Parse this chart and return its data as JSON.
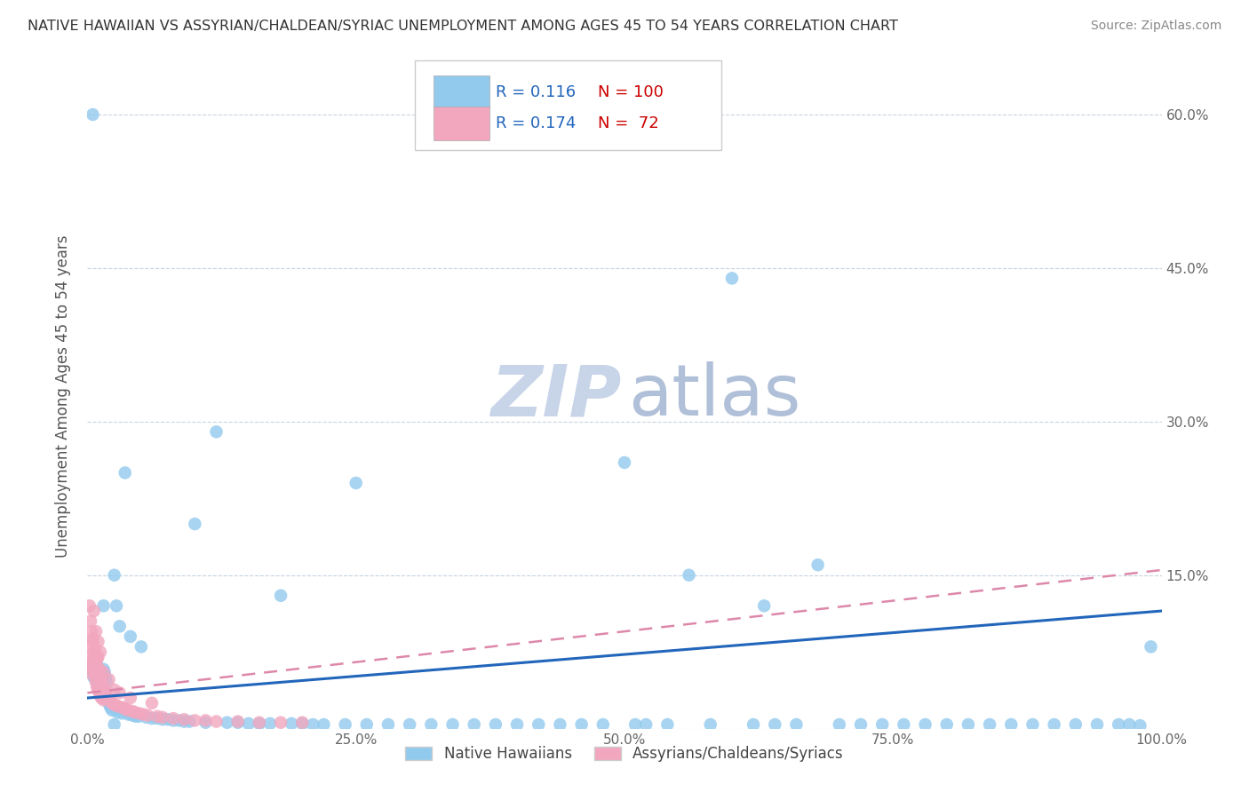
{
  "title": "NATIVE HAWAIIAN VS ASSYRIAN/CHALDEAN/SYRIAC UNEMPLOYMENT AMONG AGES 45 TO 54 YEARS CORRELATION CHART",
  "source": "Source: ZipAtlas.com",
  "ylabel": "Unemployment Among Ages 45 to 54 years",
  "xlim": [
    0.0,
    1.0
  ],
  "ylim": [
    0.0,
    0.65
  ],
  "x_ticks": [
    0.0,
    0.25,
    0.5,
    0.75,
    1.0
  ],
  "x_tick_labels": [
    "0.0%",
    "25.0%",
    "50.0%",
    "75.0%",
    "100.0%"
  ],
  "y_ticks": [
    0.0,
    0.15,
    0.3,
    0.45,
    0.6
  ],
  "y_tick_labels": [
    "",
    "15.0%",
    "30.0%",
    "45.0%",
    "60.0%"
  ],
  "r_blue": 0.116,
  "n_blue": 100,
  "r_pink": 0.174,
  "n_pink": 72,
  "blue_color": "#92caee",
  "pink_color": "#f2a7bf",
  "trend_blue_color": "#2266bb",
  "trend_pink_color": "#dd88aa",
  "watermark_zip_color": "#c8d4e8",
  "watermark_atlas_color": "#b0c0d8",
  "legend_text_color": "#2266bb",
  "legend_n_color": "#cc0000",
  "background_color": "#ffffff",
  "grid_color": "#c8d4e0",
  "title_color": "#333333",
  "source_color": "#888888",
  "ylabel_color": "#555555",
  "tick_color": "#666666",
  "blue_trend_start_y": 0.03,
  "blue_trend_end_y": 0.115,
  "pink_trend_start_y": 0.035,
  "pink_trend_end_y": 0.155,
  "blue_scatter_x": [
    0.003,
    0.005,
    0.006,
    0.007,
    0.008,
    0.009,
    0.01,
    0.01,
    0.011,
    0.012,
    0.013,
    0.014,
    0.015,
    0.016,
    0.017,
    0.018,
    0.02,
    0.021,
    0.022,
    0.023,
    0.025,
    0.027,
    0.028,
    0.03,
    0.032,
    0.035,
    0.038,
    0.04,
    0.042,
    0.045,
    0.048,
    0.05,
    0.055,
    0.06,
    0.065,
    0.07,
    0.075,
    0.08,
    0.085,
    0.09,
    0.095,
    0.1,
    0.11,
    0.12,
    0.13,
    0.14,
    0.15,
    0.16,
    0.17,
    0.18,
    0.19,
    0.2,
    0.21,
    0.22,
    0.24,
    0.25,
    0.26,
    0.28,
    0.3,
    0.32,
    0.34,
    0.36,
    0.38,
    0.4,
    0.42,
    0.44,
    0.46,
    0.48,
    0.5,
    0.52,
    0.54,
    0.56,
    0.58,
    0.6,
    0.62,
    0.64,
    0.66,
    0.68,
    0.7,
    0.72,
    0.74,
    0.76,
    0.78,
    0.8,
    0.82,
    0.84,
    0.86,
    0.88,
    0.9,
    0.92,
    0.94,
    0.96,
    0.97,
    0.98,
    0.99,
    0.005,
    0.015,
    0.025,
    0.63,
    0.51
  ],
  "blue_scatter_y": [
    0.06,
    0.055,
    0.05,
    0.05,
    0.048,
    0.045,
    0.06,
    0.042,
    0.04,
    0.038,
    0.035,
    0.03,
    0.058,
    0.055,
    0.05,
    0.045,
    0.025,
    0.022,
    0.02,
    0.018,
    0.15,
    0.12,
    0.016,
    0.1,
    0.015,
    0.25,
    0.014,
    0.09,
    0.013,
    0.012,
    0.012,
    0.08,
    0.011,
    0.01,
    0.01,
    0.009,
    0.009,
    0.008,
    0.008,
    0.007,
    0.007,
    0.2,
    0.006,
    0.29,
    0.006,
    0.006,
    0.005,
    0.005,
    0.005,
    0.13,
    0.005,
    0.005,
    0.004,
    0.004,
    0.004,
    0.24,
    0.004,
    0.004,
    0.004,
    0.004,
    0.004,
    0.004,
    0.004,
    0.004,
    0.004,
    0.004,
    0.004,
    0.004,
    0.26,
    0.004,
    0.004,
    0.15,
    0.004,
    0.44,
    0.004,
    0.004,
    0.004,
    0.16,
    0.004,
    0.004,
    0.004,
    0.004,
    0.004,
    0.004,
    0.004,
    0.004,
    0.004,
    0.004,
    0.004,
    0.004,
    0.004,
    0.004,
    0.004,
    0.003,
    0.08,
    0.6,
    0.12,
    0.004,
    0.12,
    0.004
  ],
  "pink_scatter_x": [
    0.001,
    0.002,
    0.003,
    0.004,
    0.005,
    0.005,
    0.006,
    0.006,
    0.007,
    0.007,
    0.008,
    0.008,
    0.009,
    0.009,
    0.01,
    0.01,
    0.011,
    0.011,
    0.012,
    0.012,
    0.013,
    0.013,
    0.014,
    0.015,
    0.015,
    0.016,
    0.017,
    0.018,
    0.019,
    0.02,
    0.021,
    0.022,
    0.023,
    0.024,
    0.025,
    0.026,
    0.028,
    0.03,
    0.032,
    0.034,
    0.036,
    0.038,
    0.04,
    0.042,
    0.044,
    0.048,
    0.052,
    0.056,
    0.06,
    0.065,
    0.07,
    0.08,
    0.09,
    0.1,
    0.11,
    0.12,
    0.14,
    0.16,
    0.18,
    0.2,
    0.002,
    0.003,
    0.004,
    0.005,
    0.006,
    0.007,
    0.008,
    0.009,
    0.01,
    0.011,
    0.012,
    0.013
  ],
  "pink_scatter_y": [
    0.055,
    0.08,
    0.07,
    0.065,
    0.085,
    0.06,
    0.075,
    0.055,
    0.07,
    0.05,
    0.065,
    0.045,
    0.06,
    0.04,
    0.07,
    0.038,
    0.055,
    0.035,
    0.05,
    0.032,
    0.045,
    0.03,
    0.04,
    0.055,
    0.028,
    0.038,
    0.035,
    0.032,
    0.03,
    0.048,
    0.028,
    0.026,
    0.025,
    0.024,
    0.038,
    0.023,
    0.022,
    0.035,
    0.021,
    0.02,
    0.019,
    0.018,
    0.03,
    0.017,
    0.016,
    0.015,
    0.014,
    0.013,
    0.025,
    0.012,
    0.011,
    0.01,
    0.009,
    0.008,
    0.008,
    0.007,
    0.007,
    0.006,
    0.006,
    0.006,
    0.12,
    0.105,
    0.095,
    0.088,
    0.115,
    0.078,
    0.095,
    0.068,
    0.085,
    0.058,
    0.075,
    0.048
  ]
}
